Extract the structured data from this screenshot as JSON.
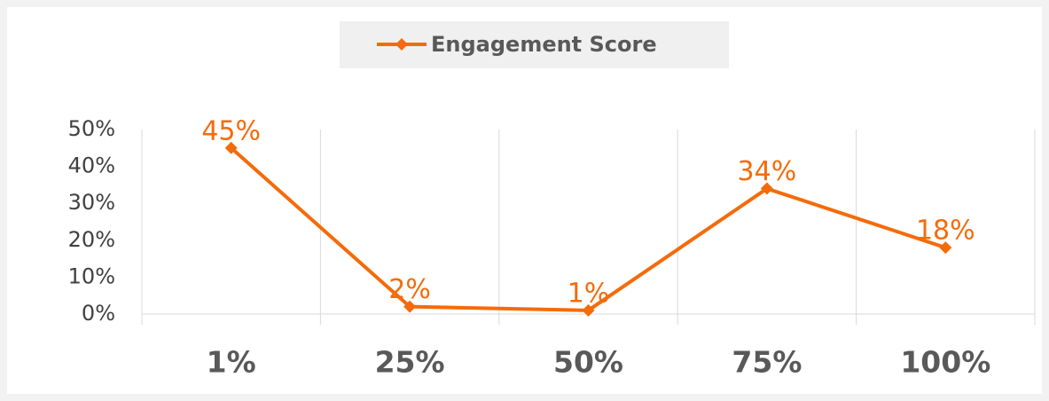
{
  "chart_data": {
    "type": "line",
    "categories": [
      "1%",
      "25%",
      "50%",
      "75%",
      "100%"
    ],
    "series": [
      {
        "name": "Engagement Score",
        "color": "#f46b0a",
        "values": [
          45,
          2,
          1,
          34,
          18
        ],
        "value_labels": [
          "45%",
          "2%",
          "1%",
          "34%",
          "18%"
        ]
      }
    ],
    "ylim": [
      0,
      50
    ],
    "yticks": [
      {
        "value": 0,
        "label": "0%"
      },
      {
        "value": 10,
        "label": "10%"
      },
      {
        "value": 20,
        "label": "20%"
      },
      {
        "value": 30,
        "label": "30%"
      },
      {
        "value": 40,
        "label": "40%"
      },
      {
        "value": 50,
        "label": "50%"
      }
    ],
    "grid": true,
    "legend": "top"
  }
}
